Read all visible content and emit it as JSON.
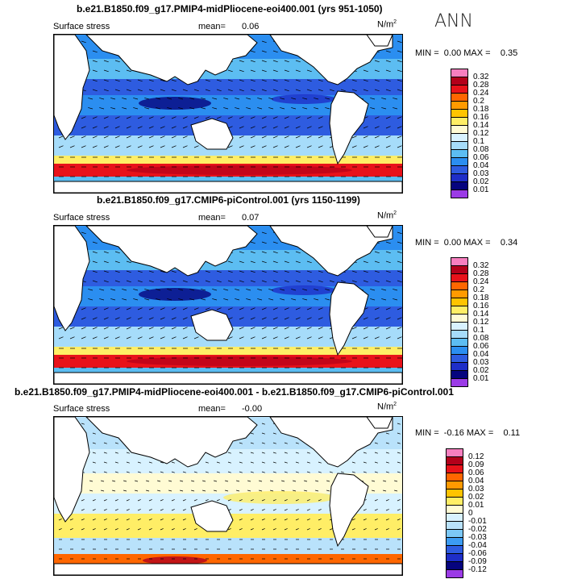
{
  "season": "ANN",
  "units": "N/m",
  "units_sup": "2",
  "panels": [
    {
      "title": "b.e21.B1850.f09_g17.PMIP4-midPliocene-eoi400.001 (yrs 951-1050)",
      "variable": "Surface stress",
      "mean_label": "mean=",
      "mean_value": "0.06",
      "min_label": "MIN =",
      "min_value": "0.00",
      "max_label": "MAX =",
      "max_value": "0.35",
      "levels": [
        "0.32",
        "0.28",
        "0.24",
        "0.2",
        "0.18",
        "0.16",
        "0.14",
        "0.12",
        "0.1",
        "0.08",
        "0.06",
        "0.04",
        "0.03",
        "0.02",
        "0.01"
      ],
      "colors": [
        "#f77fbf",
        "#b3001a",
        "#e8121a",
        "#ff6600",
        "#ff9a00",
        "#ffc400",
        "#ffee66",
        "#fffbd4",
        "#d8f2ff",
        "#a6dcfa",
        "#5cbdf2",
        "#2b8ef0",
        "#2e5ce0",
        "#1e2ec8",
        "#06047e",
        "#9b3be6"
      ]
    },
    {
      "title": "b.e21.B1850.f09_g17.CMIP6-piControl.001 (yrs 1150-1199)",
      "variable": "Surface stress",
      "mean_label": "mean=",
      "mean_value": "0.07",
      "min_label": "MIN =",
      "min_value": "0.00",
      "max_label": "MAX =",
      "max_value": "0.34",
      "levels": [
        "0.32",
        "0.28",
        "0.24",
        "0.2",
        "0.18",
        "0.16",
        "0.14",
        "0.12",
        "0.1",
        "0.08",
        "0.06",
        "0.04",
        "0.03",
        "0.02",
        "0.01"
      ],
      "colors": [
        "#f77fbf",
        "#b3001a",
        "#e8121a",
        "#ff6600",
        "#ff9a00",
        "#ffc400",
        "#ffee66",
        "#fffbd4",
        "#d8f2ff",
        "#a6dcfa",
        "#5cbdf2",
        "#2b8ef0",
        "#2e5ce0",
        "#1e2ec8",
        "#06047e",
        "#9b3be6"
      ]
    },
    {
      "title": "b.e21.B1850.f09_g17.PMIP4-midPliocene-eoi400.001 - b.e21.B1850.f09_g17.CMIP6-piControl.001",
      "variable": "Surface stress",
      "mean_label": "mean=",
      "mean_value": "-0.00",
      "min_label": "MIN =",
      "min_value": "-0.16",
      "max_label": "MAX =",
      "max_value": "0.11",
      "levels": [
        "0.12",
        "0.09",
        "0.06",
        "0.04",
        "0.03",
        "0.02",
        "0.01",
        "0",
        "-0.01",
        "-0.02",
        "-0.03",
        "-0.04",
        "-0.06",
        "-0.09",
        "-0.12"
      ],
      "colors": [
        "#f77fbf",
        "#b3001a",
        "#e8121a",
        "#ff6600",
        "#ff9a00",
        "#ffc400",
        "#ffee66",
        "#fffbd4",
        "#d8f2ff",
        "#b9e2fb",
        "#7cc8f6",
        "#3c9cf2",
        "#2e5ce0",
        "#1e2ec8",
        "#06047e",
        "#9b3be6"
      ]
    }
  ]
}
